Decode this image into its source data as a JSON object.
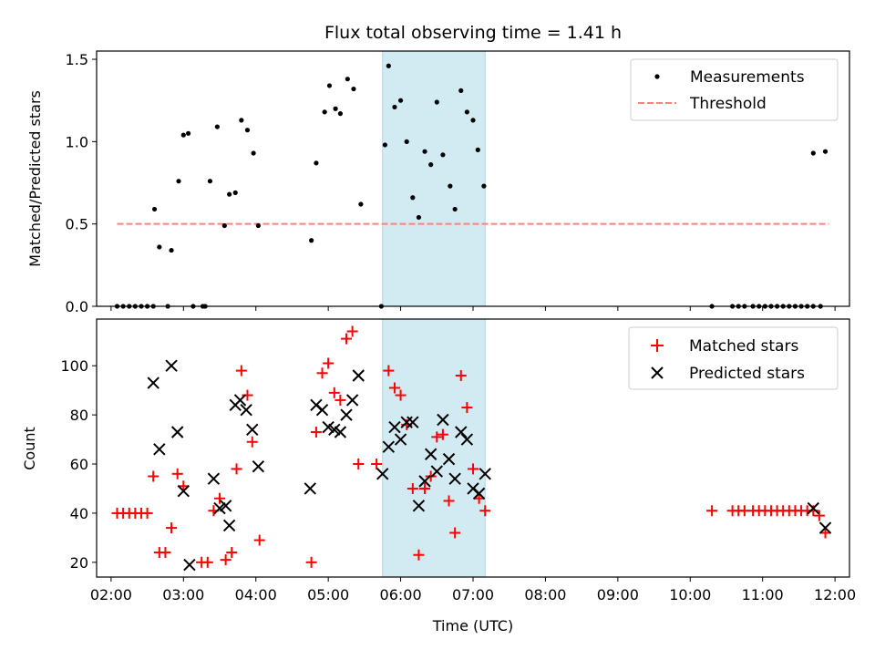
{
  "title": "Flux total observing time = 1.41 h",
  "colors": {
    "threshold": "#ff8080",
    "matched": "#ff0000",
    "predicted": "#000000",
    "span": "#add8e6"
  },
  "chart_data": [
    {
      "type": "scatter",
      "ylabel": "Matched/Predicted stars",
      "xlim": [
        "01:48",
        "12:12"
      ],
      "ylim": [
        0,
        1.55
      ],
      "xticks": [
        "02:00",
        "03:00",
        "04:00",
        "05:00",
        "06:00",
        "07:00",
        "08:00",
        "09:00",
        "10:00",
        "11:00",
        "12:00"
      ],
      "yticks": [
        "0.0",
        "0.5",
        "1.0",
        "1.5"
      ],
      "ytick_values": [
        0,
        0.5,
        1.0,
        1.5
      ],
      "legend_position": "top-right",
      "highlight_span": [
        "05:45",
        "07:10"
      ],
      "threshold": {
        "name": "Threshold",
        "y": 0.5,
        "x": [
          "02:05",
          "11:55"
        ]
      },
      "series": [
        {
          "name": "Measurements",
          "points": [
            [
              "02:05",
              0
            ],
            [
              "02:10",
              0
            ],
            [
              "02:15",
              0
            ],
            [
              "02:20",
              0
            ],
            [
              "02:25",
              0
            ],
            [
              "02:30",
              0
            ],
            [
              "02:35",
              0
            ],
            [
              "02:36",
              0.59
            ],
            [
              "02:40",
              0.36
            ],
            [
              "02:47",
              0
            ],
            [
              "02:50",
              0.34
            ],
            [
              "02:56",
              0.76
            ],
            [
              "03:00",
              1.04
            ],
            [
              "03:04",
              1.05
            ],
            [
              "03:08",
              0
            ],
            [
              "03:16",
              0
            ],
            [
              "03:18",
              0
            ],
            [
              "03:22",
              0.76
            ],
            [
              "03:28",
              1.09
            ],
            [
              "03:34",
              0.49
            ],
            [
              "03:38",
              0.68
            ],
            [
              "03:43",
              0.69
            ],
            [
              "03:48",
              1.13
            ],
            [
              "03:53",
              1.07
            ],
            [
              "03:58",
              0.93
            ],
            [
              "04:02",
              0.49
            ],
            [
              "04:46",
              0.4
            ],
            [
              "04:50",
              0.87
            ],
            [
              "04:57",
              1.18
            ],
            [
              "05:01",
              1.34
            ],
            [
              "05:06",
              1.2
            ],
            [
              "05:10",
              1.17
            ],
            [
              "05:16",
              1.38
            ],
            [
              "05:21",
              1.32
            ],
            [
              "05:27",
              0.62
            ],
            [
              "05:44",
              0
            ],
            [
              "05:47",
              0.98
            ],
            [
              "05:50",
              1.46
            ],
            [
              "05:55",
              1.21
            ],
            [
              "06:00",
              1.25
            ],
            [
              "06:05",
              1.0
            ],
            [
              "06:10",
              0.66
            ],
            [
              "06:15",
              0.54
            ],
            [
              "06:20",
              0.94
            ],
            [
              "06:25",
              0.86
            ],
            [
              "06:30",
              1.24
            ],
            [
              "06:35",
              0.92
            ],
            [
              "06:41",
              0.73
            ],
            [
              "06:45",
              0.59
            ],
            [
              "06:50",
              1.31
            ],
            [
              "06:55",
              1.18
            ],
            [
              "07:00",
              1.13
            ],
            [
              "07:04",
              0.95
            ],
            [
              "07:09",
              0.73
            ],
            [
              "10:18",
              0
            ],
            [
              "10:35",
              0
            ],
            [
              "10:40",
              0
            ],
            [
              "10:45",
              0
            ],
            [
              "10:52",
              0
            ],
            [
              "10:57",
              0
            ],
            [
              "11:02",
              0
            ],
            [
              "11:07",
              0
            ],
            [
              "11:12",
              0
            ],
            [
              "11:17",
              0
            ],
            [
              "11:22",
              0
            ],
            [
              "11:27",
              0
            ],
            [
              "11:32",
              0
            ],
            [
              "11:37",
              0
            ],
            [
              "11:42",
              0
            ],
            [
              "11:48",
              0
            ],
            [
              "11:42",
              0.93
            ],
            [
              "11:52",
              0.94
            ]
          ]
        }
      ]
    },
    {
      "type": "scatter",
      "xlabel": "Time (UTC)",
      "ylabel": "Count",
      "xlim": [
        "01:48",
        "12:12"
      ],
      "ylim": [
        14,
        119
      ],
      "xticks": [
        "02:00",
        "03:00",
        "04:00",
        "05:00",
        "06:00",
        "07:00",
        "08:00",
        "09:00",
        "10:00",
        "11:00",
        "12:00"
      ],
      "yticks": [
        "20",
        "40",
        "60",
        "80",
        "100"
      ],
      "ytick_values": [
        20,
        40,
        60,
        80,
        100
      ],
      "legend_position": "top-right",
      "highlight_span": [
        "05:45",
        "07:10"
      ],
      "series": [
        {
          "name": "Matched stars",
          "marker": "+",
          "points": [
            [
              "02:05",
              40
            ],
            [
              "02:10",
              40
            ],
            [
              "02:15",
              40
            ],
            [
              "02:20",
              40
            ],
            [
              "02:25",
              40
            ],
            [
              "02:30",
              40
            ],
            [
              "02:35",
              55
            ],
            [
              "02:40",
              24
            ],
            [
              "02:45",
              24
            ],
            [
              "02:50",
              34
            ],
            [
              "02:55",
              56
            ],
            [
              "03:00",
              51
            ],
            [
              "03:15",
              20
            ],
            [
              "03:20",
              20
            ],
            [
              "03:25",
              41
            ],
            [
              "03:30",
              46
            ],
            [
              "03:35",
              21
            ],
            [
              "03:40",
              24
            ],
            [
              "03:44",
              58
            ],
            [
              "03:48",
              98
            ],
            [
              "03:53",
              88
            ],
            [
              "03:57",
              69
            ],
            [
              "04:03",
              29
            ],
            [
              "04:46",
              20
            ],
            [
              "04:50",
              73
            ],
            [
              "04:55",
              97
            ],
            [
              "05:00",
              101
            ],
            [
              "05:05",
              89
            ],
            [
              "05:10",
              86
            ],
            [
              "05:15",
              111
            ],
            [
              "05:20",
              114
            ],
            [
              "05:25",
              60
            ],
            [
              "05:40",
              60
            ],
            [
              "05:50",
              98
            ],
            [
              "05:55",
              91
            ],
            [
              "06:00",
              88
            ],
            [
              "06:05",
              76
            ],
            [
              "06:10",
              50
            ],
            [
              "06:15",
              23
            ],
            [
              "06:20",
              50
            ],
            [
              "06:25",
              55
            ],
            [
              "06:30",
              71
            ],
            [
              "06:35",
              72
            ],
            [
              "06:40",
              45
            ],
            [
              "06:45",
              32
            ],
            [
              "06:50",
              96
            ],
            [
              "06:55",
              83
            ],
            [
              "07:00",
              58
            ],
            [
              "07:05",
              46
            ],
            [
              "07:10",
              41
            ],
            [
              "10:18",
              41
            ],
            [
              "10:35",
              41
            ],
            [
              "10:40",
              41
            ],
            [
              "10:45",
              41
            ],
            [
              "10:52",
              41
            ],
            [
              "10:57",
              41
            ],
            [
              "11:02",
              41
            ],
            [
              "11:07",
              41
            ],
            [
              "11:12",
              41
            ],
            [
              "11:17",
              41
            ],
            [
              "11:22",
              41
            ],
            [
              "11:27",
              41
            ],
            [
              "11:32",
              41
            ],
            [
              "11:37",
              41
            ],
            [
              "11:42",
              41
            ],
            [
              "11:47",
              39
            ],
            [
              "11:52",
              32
            ]
          ]
        },
        {
          "name": "Predicted stars",
          "marker": "x",
          "points": [
            [
              "02:35",
              93
            ],
            [
              "02:40",
              66
            ],
            [
              "02:50",
              100
            ],
            [
              "02:55",
              73
            ],
            [
              "03:00",
              49
            ],
            [
              "03:05",
              19
            ],
            [
              "03:25",
              54
            ],
            [
              "03:30",
              42
            ],
            [
              "03:35",
              43
            ],
            [
              "03:38",
              35
            ],
            [
              "03:43",
              84
            ],
            [
              "03:47",
              86
            ],
            [
              "03:52",
              82
            ],
            [
              "03:57",
              74
            ],
            [
              "04:02",
              59
            ],
            [
              "04:45",
              50
            ],
            [
              "04:50",
              84
            ],
            [
              "04:55",
              82
            ],
            [
              "05:00",
              75
            ],
            [
              "05:05",
              74
            ],
            [
              "05:10",
              73
            ],
            [
              "05:15",
              80
            ],
            [
              "05:20",
              86
            ],
            [
              "05:25",
              96
            ],
            [
              "05:45",
              56
            ],
            [
              "05:50",
              67
            ],
            [
              "05:55",
              75
            ],
            [
              "06:00",
              70
            ],
            [
              "06:05",
              77
            ],
            [
              "06:10",
              77
            ],
            [
              "06:15",
              43
            ],
            [
              "06:20",
              53
            ],
            [
              "06:25",
              64
            ],
            [
              "06:30",
              57
            ],
            [
              "06:35",
              78
            ],
            [
              "06:40",
              62
            ],
            [
              "06:45",
              54
            ],
            [
              "06:50",
              73
            ],
            [
              "06:55",
              70
            ],
            [
              "07:00",
              50
            ],
            [
              "07:05",
              48
            ],
            [
              "07:10",
              56
            ],
            [
              "11:42",
              42
            ],
            [
              "11:52",
              34
            ]
          ]
        }
      ]
    }
  ]
}
